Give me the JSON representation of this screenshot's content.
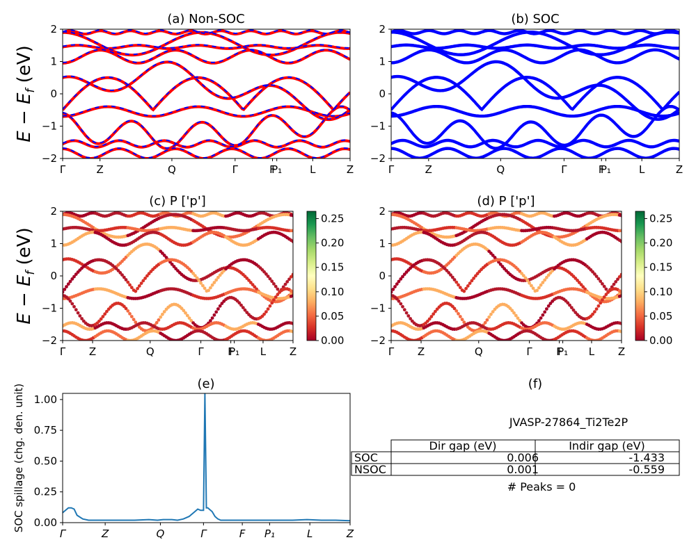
{
  "figure_id": "JVASP-27864_Ti2Te2P",
  "colors": {
    "soc": "#0000ff",
    "nonsoc": "#ff0000",
    "spill": "#1f77b4"
  },
  "ylabel": "E − E_f (eV)",
  "ylabel_main": "E − E",
  "ylabel_sub": "f",
  "ylabel_unit": " (eV)",
  "kpath_labels": [
    "Γ",
    "Z",
    "Q",
    "Γ",
    "F",
    "P₁",
    "L",
    "Z"
  ],
  "chart_data": [
    {
      "id": "a",
      "type": "line",
      "title": "(a) Non-SOC",
      "ylim": [
        -2,
        2
      ],
      "yticks": [
        "2",
        "1",
        "0",
        "−1",
        "−2"
      ],
      "xticks": [
        "Γ",
        "Z",
        "Q",
        "Γ",
        "F",
        "P₁",
        "L",
        "Z"
      ],
      "xtick_positions": [
        0,
        0.13,
        0.38,
        0.6,
        0.73,
        0.745,
        0.87,
        1.0
      ],
      "series": [
        {
          "name": "Non-SOC",
          "color": "#ff0000"
        },
        {
          "name": "SOC",
          "color": "#0000ff"
        }
      ]
    },
    {
      "id": "b",
      "type": "line",
      "title": "(b) SOC",
      "ylim": [
        -2,
        2
      ],
      "yticks": [
        "2",
        "1",
        "0",
        "−1",
        "−2"
      ],
      "xticks": [
        "Γ",
        "Z",
        "Q",
        "Γ",
        "F",
        "P₁",
        "L",
        "Z"
      ],
      "xtick_positions": [
        0,
        0.13,
        0.38,
        0.6,
        0.73,
        0.745,
        0.87,
        1.0
      ],
      "series": [
        {
          "name": "SOC",
          "color": "#0000ff"
        }
      ]
    },
    {
      "id": "c",
      "type": "scatter",
      "title": "(c)  P ['p']",
      "ylim": [
        -2,
        2
      ],
      "yticks": [
        "2",
        "1",
        "0",
        "−1",
        "−2"
      ],
      "xticks": [
        "Γ",
        "Z",
        "Q",
        "Γ",
        "F",
        "P₁",
        "L",
        "Z"
      ],
      "xtick_positions": [
        0,
        0.13,
        0.38,
        0.6,
        0.73,
        0.745,
        0.87,
        1.0
      ],
      "colorbar": {
        "min": 0.0,
        "max": 0.265,
        "ticks": [
          "0.25",
          "0.20",
          "0.15",
          "0.10",
          "0.05",
          "0.00"
        ],
        "tick_values": [
          0.25,
          0.2,
          0.15,
          0.1,
          0.05,
          0.0
        ],
        "colormap": "RdYlGn"
      }
    },
    {
      "id": "d",
      "type": "scatter",
      "title": "(d) P ['p']",
      "ylim": [
        -2,
        2
      ],
      "yticks": [
        "2",
        "1",
        "0",
        "−1",
        "−2"
      ],
      "xticks": [
        "Γ",
        "Z",
        "Q",
        "Γ",
        "F",
        "P₁",
        "L",
        "Z"
      ],
      "xtick_positions": [
        0,
        0.13,
        0.38,
        0.6,
        0.73,
        0.745,
        0.87,
        1.0
      ],
      "colorbar": {
        "min": 0.0,
        "max": 0.265,
        "ticks": [
          "0.25",
          "0.20",
          "0.15",
          "0.10",
          "0.05",
          "0.00"
        ],
        "tick_values": [
          0.25,
          0.2,
          0.15,
          0.1,
          0.05,
          0.0
        ],
        "colormap": "RdYlGn"
      }
    },
    {
      "id": "e",
      "type": "line",
      "title": "(e)",
      "ylabel": "SOC spillage (chg. den. unit)",
      "ylim": [
        0,
        1.05
      ],
      "yticks": [
        "0.00",
        "0.25",
        "0.50",
        "0.75",
        "1.00"
      ],
      "ytick_values": [
        0,
        0.25,
        0.5,
        0.75,
        1.0
      ],
      "xticks": [
        "Γ",
        "Z",
        "Q",
        "Γ",
        "F",
        "P₁",
        "L",
        "Z"
      ],
      "xtick_positions": [
        0,
        0.148,
        0.34,
        0.49,
        0.625,
        0.72,
        0.86,
        1.0
      ],
      "series": [
        {
          "name": "spillage",
          "x": [
            0,
            0.01,
            0.02,
            0.03,
            0.04,
            0.05,
            0.07,
            0.09,
            0.12,
            0.16,
            0.2,
            0.25,
            0.3,
            0.33,
            0.35,
            0.38,
            0.4,
            0.42,
            0.44,
            0.46,
            0.47,
            0.48,
            0.485,
            0.49,
            0.495,
            0.5,
            0.505,
            0.51,
            0.52,
            0.53,
            0.54,
            0.55,
            0.6,
            0.65,
            0.7,
            0.75,
            0.8,
            0.85,
            0.9,
            0.95,
            1.0
          ],
          "y": [
            0.08,
            0.1,
            0.12,
            0.12,
            0.11,
            0.06,
            0.03,
            0.02,
            0.02,
            0.02,
            0.02,
            0.02,
            0.025,
            0.02,
            0.025,
            0.025,
            0.02,
            0.03,
            0.05,
            0.09,
            0.11,
            0.1,
            0.1,
            0.1,
            1.05,
            0.12,
            0.12,
            0.11,
            0.09,
            0.05,
            0.03,
            0.02,
            0.02,
            0.02,
            0.02,
            0.02,
            0.02,
            0.025,
            0.02,
            0.02,
            0.015
          ]
        }
      ]
    }
  ],
  "panel_f": {
    "title": "(f)",
    "subtitle": "JVASP-27864_Ti2Te2P",
    "headers": [
      "Dir gap (eV)",
      "Indir gap (eV)"
    ],
    "rows": [
      {
        "label": "SOC",
        "dir": "0.006",
        "indir": "-1.433"
      },
      {
        "label": "NSOC",
        "dir": "0.001",
        "indir": "-0.559"
      }
    ],
    "peaks": "# Peaks = 0"
  }
}
